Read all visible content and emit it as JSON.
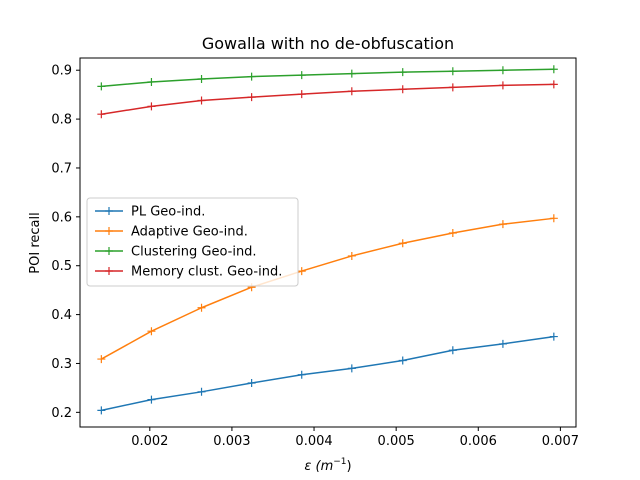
{
  "chart_data": {
    "type": "line",
    "title": "Gowalla with no de-obfuscation",
    "xlabel_prefix": "ε (m",
    "xlabel_sup": "−1",
    "xlabel_suffix": ")",
    "ylabel": "POI recall",
    "xlim": [
      0.00115,
      0.00719
    ],
    "ylim": [
      0.17,
      0.925
    ],
    "xticks": [
      0.002,
      0.003,
      0.004,
      0.005,
      0.006,
      0.007
    ],
    "xtick_labels": [
      "0.002",
      "0.003",
      "0.004",
      "0.005",
      "0.006",
      "0.007"
    ],
    "yticks": [
      0.2,
      0.3,
      0.4,
      0.5,
      0.6,
      0.7,
      0.8,
      0.9
    ],
    "ytick_labels": [
      "0.2",
      "0.3",
      "0.4",
      "0.5",
      "0.6",
      "0.7",
      "0.8",
      "0.9"
    ],
    "x": [
      0.00141,
      0.00202,
      0.00263,
      0.00324,
      0.00385,
      0.00446,
      0.00508,
      0.00569,
      0.0063,
      0.00692
    ],
    "legend_position": "center-left",
    "series": [
      {
        "name": "PL Geo-ind.",
        "color": "#1f77b4",
        "values": [
          0.204,
          0.226,
          0.242,
          0.26,
          0.277,
          0.29,
          0.306,
          0.327,
          0.34,
          0.355
        ]
      },
      {
        "name": "Adaptive Geo-ind.",
        "color": "#ff7f0e",
        "values": [
          0.309,
          0.366,
          0.414,
          0.456,
          0.489,
          0.52,
          0.546,
          0.567,
          0.585,
          0.597
        ]
      },
      {
        "name": "Clustering Geo-ind.",
        "color": "#2ca02c",
        "values": [
          0.867,
          0.876,
          0.882,
          0.887,
          0.89,
          0.893,
          0.896,
          0.898,
          0.9,
          0.902
        ]
      },
      {
        "name": "Memory clust. Geo-ind.",
        "color": "#d62728",
        "values": [
          0.81,
          0.826,
          0.838,
          0.845,
          0.851,
          0.857,
          0.861,
          0.865,
          0.869,
          0.871
        ]
      }
    ]
  }
}
